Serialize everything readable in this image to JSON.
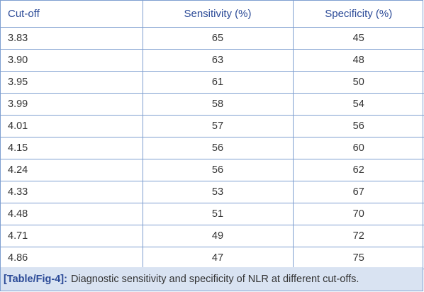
{
  "table": {
    "headers": [
      "Cut-off",
      "Sensitivity (%)",
      "Specificity (%)"
    ],
    "rows": [
      [
        "3.83",
        "65",
        "45"
      ],
      [
        "3.90",
        "63",
        "48"
      ],
      [
        "3.95",
        "61",
        "50"
      ],
      [
        "3.99",
        "58",
        "54"
      ],
      [
        "4.01",
        "57",
        "56"
      ],
      [
        "4.15",
        "56",
        "60"
      ],
      [
        "4.24",
        "56",
        "62"
      ],
      [
        "4.33",
        "53",
        "67"
      ],
      [
        "4.48",
        "51",
        "70"
      ],
      [
        "4.71",
        "49",
        "72"
      ],
      [
        "4.86",
        "47",
        "75"
      ]
    ]
  },
  "caption": {
    "tag": "[Table/Fig-4]:",
    "text": "Diagnostic sensitivity and specificity of NLR at different cut-offs."
  },
  "colors": {
    "header_text": "#2b4a97",
    "border": "#7f9fd0",
    "caption_bg": "#d9e3f2"
  }
}
